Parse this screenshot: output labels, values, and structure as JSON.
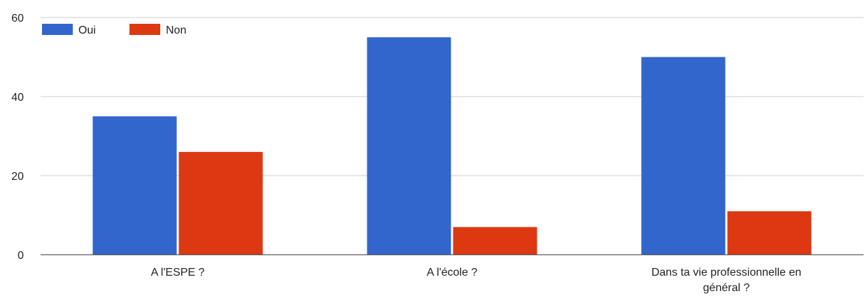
{
  "chart_data": {
    "type": "bar",
    "categories": [
      [
        "A l'ESPE ?"
      ],
      [
        "A l'école ?"
      ],
      [
        "Dans ta vie professionnelle en",
        "général ?"
      ]
    ],
    "series": [
      {
        "name": "Oui",
        "color": "#3366cc",
        "values": [
          35,
          55,
          50
        ]
      },
      {
        "name": "Non",
        "color": "#dc3912",
        "values": [
          26,
          7,
          11
        ]
      }
    ],
    "ylim": [
      0,
      60
    ],
    "yticks": [
      0,
      20,
      40,
      60
    ],
    "grid": true,
    "legend_position": "top-left"
  }
}
